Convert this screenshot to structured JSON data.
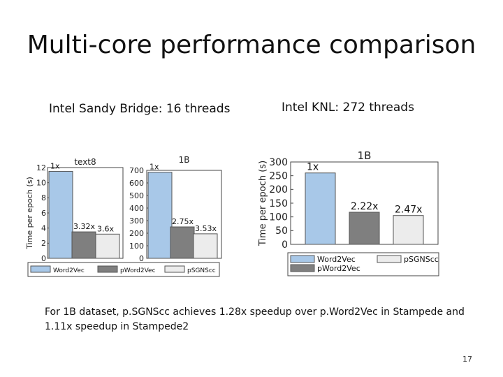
{
  "slide": {
    "title": "Multi-core performance comparison",
    "subtitle_left": "Intel Sandy Bridge:  16 threads",
    "subtitle_right": "Intel KNL: 272 threads",
    "note": "For 1B dataset, p.SGNScc achieves 1.28x speedup over p.Word2Vec in Stampede and 1.11x speedup in Stampede2",
    "page_number": "17"
  },
  "colors": {
    "word2vec": "#a8c8e8",
    "pword2vec": "#7f7f7f",
    "psgnscc": "#ececec",
    "edge": "#555555"
  },
  "legend_small": [
    "Word2Vec",
    "pWord2Vec",
    "pSGNScc"
  ],
  "legend_big": [
    "Word2Vec",
    "pWord2Vec",
    "pSGNScc"
  ],
  "chart_data": [
    {
      "type": "bar",
      "title": "text8",
      "ylabel": "Time per epoch (s)",
      "ylim": [
        0,
        12
      ],
      "yticks": [
        0,
        2,
        4,
        6,
        8,
        10,
        12
      ],
      "series": [
        {
          "name": "Word2Vec",
          "values": [
            11.5
          ],
          "label": "1x"
        },
        {
          "name": "pWord2Vec",
          "values": [
            3.5
          ],
          "label": "3.32x"
        },
        {
          "name": "pSGNScc",
          "values": [
            3.2
          ],
          "label": "3.6x"
        }
      ]
    },
    {
      "type": "bar",
      "title": "1B",
      "ylabel": "",
      "ylim": [
        0,
        700
      ],
      "yticks": [
        0,
        100,
        200,
        300,
        400,
        500,
        600,
        700
      ],
      "series": [
        {
          "name": "Word2Vec",
          "values": [
            685
          ],
          "label": "1x"
        },
        {
          "name": "pWord2Vec",
          "values": [
            250
          ],
          "label": "2.75x"
        },
        {
          "name": "pSGNScc",
          "values": [
            195
          ],
          "label": "3.53x"
        }
      ]
    },
    {
      "type": "bar",
      "title": "1B",
      "ylabel": "Time per epoch (s)",
      "ylim": [
        0,
        300
      ],
      "yticks": [
        0,
        50,
        100,
        150,
        200,
        250,
        300
      ],
      "series": [
        {
          "name": "Word2Vec",
          "values": [
            260
          ],
          "label": "1x"
        },
        {
          "name": "pWord2Vec",
          "values": [
            117
          ],
          "label": "2.22x"
        },
        {
          "name": "pSGNScc",
          "values": [
            105
          ],
          "label": "2.47x"
        }
      ]
    }
  ]
}
